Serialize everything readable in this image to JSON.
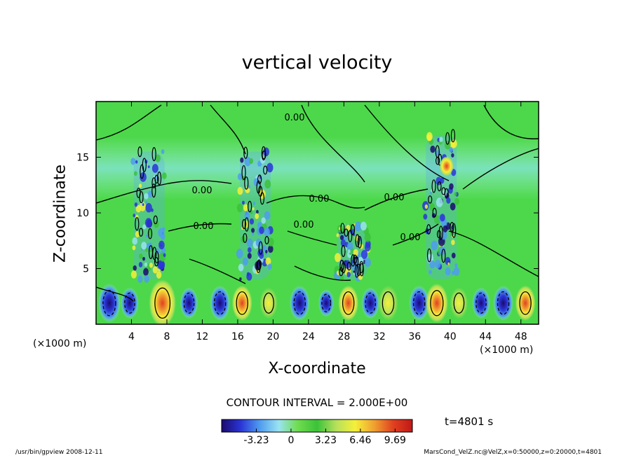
{
  "chart_data": {
    "type": "heatmap",
    "title": "vertical velocity",
    "xlabel": "X-coordinate",
    "ylabel": "Z-coordinate",
    "x_unit": "(×1000 m)",
    "xlim": [
      0,
      50
    ],
    "ylim": [
      0,
      20
    ],
    "x_ticks": [
      4,
      8,
      12,
      16,
      20,
      24,
      28,
      32,
      36,
      40,
      44,
      48
    ],
    "y_ticks": [
      5,
      10,
      15
    ],
    "contour_interval_text": "CONTOUR INTERVAL = 2.000E+00",
    "contour_label": "0.00",
    "colorbar": {
      "labels": [
        "-3.23",
        "0",
        "3.23",
        "6.46",
        "9.69"
      ],
      "values": [
        -3.23,
        0,
        3.23,
        6.46,
        9.69
      ],
      "min": -6.46,
      "max": 11.3,
      "colors": [
        "#1a0a6e",
        "#2a35d6",
        "#4f9cf0",
        "#9ae3f0",
        "#6fdc4e",
        "#3cc23a",
        "#b6e05c",
        "#f5f03a",
        "#f0a030",
        "#e04020",
        "#c01818"
      ]
    },
    "plumes": [
      {
        "x": 6,
        "z_top": 15.5
      },
      {
        "x": 18,
        "z_top": 15.5
      },
      {
        "x": 29,
        "z_top": 9
      },
      {
        "x": 39,
        "z_top": 17
      }
    ],
    "time_label": "t=4801 s"
  },
  "footer": {
    "left": "/usr/bin/gpview  2008-12-11",
    "right": "MarsCond_VelZ.nc@VelZ,x=0:50000,z=0:20000,t=4801"
  },
  "colors": {
    "background_field": "#4cd84a",
    "upper_band": "#86e4c4",
    "frame": "#000000"
  }
}
